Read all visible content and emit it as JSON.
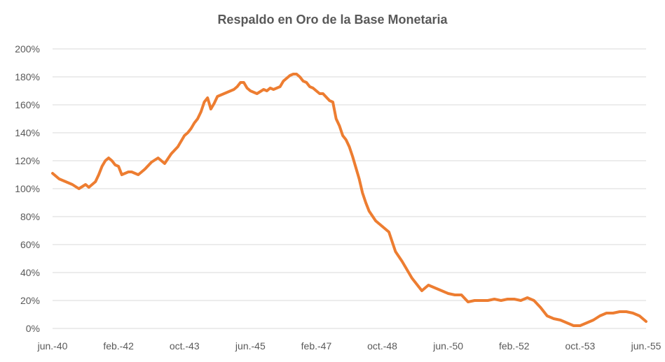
{
  "chart_data": {
    "type": "line",
    "title": "Respaldo en Oro de la Base Monetaria",
    "xlabel": "",
    "ylabel": "",
    "ylim": [
      0,
      200
    ],
    "grid": true,
    "legend": "none",
    "y_tick_labels": [
      "0%",
      "20%",
      "40%",
      "60%",
      "80%",
      "100%",
      "120%",
      "140%",
      "160%",
      "180%",
      "200%"
    ],
    "x_tick_labels": [
      "jun.-40",
      "feb.-42",
      "oct.-43",
      "jun.-45",
      "feb.-47",
      "oct.-48",
      "jun.-50",
      "feb.-52",
      "oct.-53",
      "jun.-55"
    ],
    "x_range": [
      0,
      180
    ],
    "colors": {
      "series": "#ED7D31",
      "grid": "#D9D9D9",
      "text": "#595959"
    },
    "series": [
      {
        "x": [
          0,
          2,
          4,
          6,
          8,
          10,
          11,
          12,
          13,
          14,
          15,
          16,
          17,
          18,
          19,
          20,
          21,
          22,
          23,
          24,
          25,
          26,
          27,
          28,
          30,
          32,
          34,
          36,
          38,
          40,
          41,
          42,
          43,
          44,
          45,
          46,
          47,
          48,
          49,
          50,
          51,
          52,
          53,
          54,
          55,
          56,
          57,
          58,
          59,
          60,
          62,
          64,
          65,
          66,
          67,
          68,
          69,
          70,
          72,
          73,
          74,
          75,
          76,
          77,
          78,
          79,
          80,
          81,
          82,
          84,
          85,
          86,
          87,
          88,
          89,
          90,
          91,
          92,
          93,
          94,
          95,
          96,
          98,
          100,
          102,
          104,
          106,
          107,
          108,
          109,
          110,
          112,
          114,
          116,
          118,
          120,
          122,
          124,
          126,
          128,
          130,
          132,
          134,
          136,
          138,
          140,
          142,
          144,
          146,
          148,
          150,
          152,
          154,
          156,
          158,
          160,
          162,
          164,
          166,
          168,
          170,
          172,
          174,
          176,
          178,
          180
        ],
        "y": [
          111,
          107,
          105,
          103,
          100,
          103,
          101,
          103,
          105,
          110,
          116,
          120,
          122,
          120,
          117,
          116,
          110,
          111,
          112,
          112,
          111,
          110,
          112,
          114,
          119,
          122,
          118,
          125,
          130,
          138,
          140,
          143,
          147,
          150,
          155,
          162,
          165,
          157,
          161,
          166,
          167,
          168,
          169,
          170,
          171,
          173,
          176,
          176,
          172,
          170,
          168,
          171,
          170,
          172,
          171,
          172,
          173,
          177,
          181,
          182,
          182,
          180,
          177,
          176,
          173,
          172,
          170,
          168,
          168,
          163,
          162,
          150,
          145,
          138,
          135,
          130,
          123,
          115,
          107,
          97,
          90,
          84,
          77,
          73,
          69,
          55,
          48,
          44,
          40,
          36,
          33,
          27,
          31,
          29,
          27,
          25,
          24,
          24,
          19,
          20,
          20,
          20,
          21,
          20,
          21,
          21,
          20,
          22,
          20,
          15,
          9,
          7,
          6,
          4,
          2,
          2,
          4,
          6,
          9,
          11,
          11,
          12,
          12,
          11,
          9,
          5
        ]
      }
    ]
  }
}
